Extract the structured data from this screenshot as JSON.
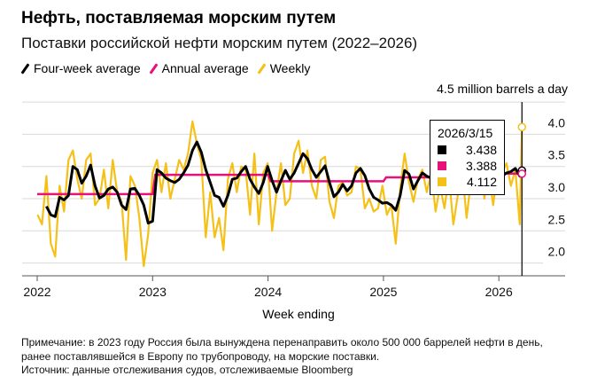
{
  "header": {
    "title": "Нефть, поставляемая морским путем",
    "subtitle": "Поставки российской нефти морским путем (2022–2026)"
  },
  "footer": {
    "note1": "Примечание: в 2023 году Россия была вынуждена перенаправить около 500 000 баррелей нефти в день,",
    "note2": "ранее поставлявшейся в Европу по трубопроводу, на морские поставки.",
    "source": "Источник: данные отслеживания судов, отслеживаемые Bloomberg"
  },
  "tooltip": {
    "date": "2026/3/15",
    "four_week": "3.438",
    "annual": "3.388",
    "weekly": "4.112"
  },
  "chart_data": {
    "type": "line",
    "title": "Нефть, поставляемая морским путем",
    "subtitle": "Поставки российской нефти морским путем (2022–2026)",
    "xlabel": "Week ending",
    "ylabel": "4.5 million barrels a day",
    "ylim": [
      2.0,
      4.5
    ],
    "yticks": [
      "2.0",
      "2.5",
      "3.0",
      "3.5",
      "4.0"
    ],
    "xticks": [
      "2022",
      "2023",
      "2024",
      "2025",
      "2026"
    ],
    "grid": true,
    "legend_position": "top-left",
    "colors": {
      "four_week": "#000000",
      "annual": "#e8107a",
      "weekly": "#f5c018"
    },
    "legend": [
      "Four-week average",
      "Annual average",
      "Weekly"
    ],
    "series": [
      {
        "name": "Weekly",
        "points": [
          [
            "2022-01-02",
            2.75
          ],
          [
            "2022-01-16",
            2.6
          ],
          [
            "2022-01-30",
            3.35
          ],
          [
            "2022-02-13",
            2.3
          ],
          [
            "2022-02-27",
            2.1
          ],
          [
            "2022-03-13",
            3.2
          ],
          [
            "2022-03-27",
            2.8
          ],
          [
            "2022-04-10",
            3.6
          ],
          [
            "2022-04-24",
            3.75
          ],
          [
            "2022-05-08",
            3.3
          ],
          [
            "2022-05-22",
            3.0
          ],
          [
            "2022-06-05",
            3.6
          ],
          [
            "2022-06-19",
            3.7
          ],
          [
            "2022-07-03",
            2.9
          ],
          [
            "2022-07-17",
            3.0
          ],
          [
            "2022-07-31",
            3.45
          ],
          [
            "2022-08-14",
            2.85
          ],
          [
            "2022-08-28",
            3.6
          ],
          [
            "2022-09-11",
            3.1
          ],
          [
            "2022-09-25",
            2.95
          ],
          [
            "2022-10-09",
            2.05
          ],
          [
            "2022-10-23",
            3.35
          ],
          [
            "2022-11-06",
            3.2
          ],
          [
            "2022-11-20",
            2.7
          ],
          [
            "2022-12-04",
            1.95
          ],
          [
            "2022-12-18",
            2.45
          ],
          [
            "2023-01-01",
            3.4
          ],
          [
            "2023-01-15",
            3.6
          ],
          [
            "2023-01-29",
            3.1
          ],
          [
            "2023-02-12",
            3.55
          ],
          [
            "2023-02-26",
            3.0
          ],
          [
            "2023-03-12",
            3.3
          ],
          [
            "2023-03-26",
            3.6
          ],
          [
            "2023-04-09",
            3.45
          ],
          [
            "2023-04-23",
            3.7
          ],
          [
            "2023-05-07",
            4.2
          ],
          [
            "2023-05-21",
            3.85
          ],
          [
            "2023-06-04",
            3.6
          ],
          [
            "2023-06-18",
            2.4
          ],
          [
            "2023-07-02",
            3.1
          ],
          [
            "2023-07-16",
            2.4
          ],
          [
            "2023-07-30",
            2.7
          ],
          [
            "2023-08-13",
            2.2
          ],
          [
            "2023-08-27",
            3.3
          ],
          [
            "2023-09-10",
            3.55
          ],
          [
            "2023-09-24",
            3.1
          ],
          [
            "2023-10-08",
            3.5
          ],
          [
            "2023-10-22",
            3.45
          ],
          [
            "2023-11-05",
            2.75
          ],
          [
            "2023-11-19",
            3.7
          ],
          [
            "2023-12-03",
            2.6
          ],
          [
            "2023-12-17",
            3.4
          ],
          [
            "2023-12-31",
            3.55
          ],
          [
            "2024-01-14",
            2.5
          ],
          [
            "2024-01-28",
            3.1
          ],
          [
            "2024-02-11",
            3.55
          ],
          [
            "2024-02-25",
            2.9
          ],
          [
            "2024-03-10",
            3.0
          ],
          [
            "2024-03-24",
            3.7
          ],
          [
            "2024-04-07",
            3.9
          ],
          [
            "2024-04-21",
            3.4
          ],
          [
            "2024-05-05",
            3.75
          ],
          [
            "2024-05-19",
            3.2
          ],
          [
            "2024-06-02",
            3.0
          ],
          [
            "2024-06-16",
            3.6
          ],
          [
            "2024-06-30",
            3.65
          ],
          [
            "2024-07-14",
            2.95
          ],
          [
            "2024-07-28",
            2.7
          ],
          [
            "2024-08-11",
            3.2
          ],
          [
            "2024-08-25",
            3.25
          ],
          [
            "2024-09-08",
            3.05
          ],
          [
            "2024-09-22",
            3.1
          ],
          [
            "2024-10-06",
            3.5
          ],
          [
            "2024-10-20",
            3.45
          ],
          [
            "2024-11-03",
            2.85
          ],
          [
            "2024-11-17",
            3.0
          ],
          [
            "2024-12-01",
            2.8
          ],
          [
            "2024-12-15",
            2.85
          ],
          [
            "2024-12-29",
            3.2
          ],
          [
            "2025-01-12",
            2.75
          ],
          [
            "2025-01-26",
            2.9
          ],
          [
            "2025-02-09",
            2.3
          ],
          [
            "2025-02-23",
            3.15
          ],
          [
            "2025-03-09",
            3.7
          ],
          [
            "2025-03-23",
            3.25
          ],
          [
            "2025-04-06",
            2.95
          ],
          [
            "2025-04-20",
            3.3
          ],
          [
            "2025-05-04",
            3.45
          ],
          [
            "2025-05-18",
            3.1
          ],
          [
            "2025-06-01",
            3.4
          ],
          [
            "2025-06-15",
            2.8
          ],
          [
            "2025-06-29",
            3.2
          ],
          [
            "2025-07-13",
            2.85
          ],
          [
            "2025-07-27",
            3.35
          ],
          [
            "2025-08-10",
            2.6
          ],
          [
            "2025-08-24",
            3.05
          ],
          [
            "2025-09-07",
            3.45
          ],
          [
            "2025-09-21",
            2.7
          ],
          [
            "2025-10-05",
            3.3
          ],
          [
            "2025-10-19",
            3.2
          ],
          [
            "2025-11-02",
            4.05
          ],
          [
            "2025-11-16",
            3.0
          ],
          [
            "2025-11-30",
            3.4
          ],
          [
            "2025-12-14",
            2.9
          ],
          [
            "2025-12-28",
            3.45
          ],
          [
            "2026-01-11",
            3.4
          ],
          [
            "2026-01-25",
            3.55
          ],
          [
            "2026-02-08",
            3.2
          ],
          [
            "2026-02-22",
            3.45
          ],
          [
            "2026-03-08",
            2.6
          ],
          [
            "2026-03-15",
            4.112
          ]
        ]
      },
      {
        "name": "Four-week average",
        "points": [
          [
            "2022-01-30",
            2.88
          ],
          [
            "2022-02-13",
            2.75
          ],
          [
            "2022-02-27",
            2.72
          ],
          [
            "2022-03-13",
            3.02
          ],
          [
            "2022-03-27",
            2.98
          ],
          [
            "2022-04-10",
            3.05
          ],
          [
            "2022-04-24",
            3.5
          ],
          [
            "2022-05-08",
            3.45
          ],
          [
            "2022-05-22",
            3.24
          ],
          [
            "2022-06-05",
            3.35
          ],
          [
            "2022-06-19",
            3.52
          ],
          [
            "2022-07-03",
            3.2
          ],
          [
            "2022-07-17",
            3.01
          ],
          [
            "2022-07-31",
            3.05
          ],
          [
            "2022-08-14",
            3.15
          ],
          [
            "2022-08-28",
            3.18
          ],
          [
            "2022-09-11",
            3.1
          ],
          [
            "2022-09-25",
            2.9
          ],
          [
            "2022-10-09",
            2.83
          ],
          [
            "2022-10-23",
            3.15
          ],
          [
            "2022-11-06",
            3.16
          ],
          [
            "2022-11-20",
            3.05
          ],
          [
            "2022-12-04",
            2.9
          ],
          [
            "2022-12-18",
            2.62
          ],
          [
            "2023-01-01",
            2.65
          ],
          [
            "2023-01-15",
            3.45
          ],
          [
            "2023-01-29",
            3.4
          ],
          [
            "2023-02-12",
            3.32
          ],
          [
            "2023-02-26",
            3.28
          ],
          [
            "2023-03-12",
            3.25
          ],
          [
            "2023-03-26",
            3.3
          ],
          [
            "2023-04-09",
            3.4
          ],
          [
            "2023-04-23",
            3.52
          ],
          [
            "2023-05-07",
            3.75
          ],
          [
            "2023-05-21",
            3.88
          ],
          [
            "2023-06-04",
            3.72
          ],
          [
            "2023-06-18",
            3.45
          ],
          [
            "2023-07-02",
            3.25
          ],
          [
            "2023-07-16",
            3.05
          ],
          [
            "2023-07-30",
            3.02
          ],
          [
            "2023-08-13",
            2.88
          ],
          [
            "2023-08-27",
            3.05
          ],
          [
            "2023-09-10",
            3.3
          ],
          [
            "2023-09-24",
            3.32
          ],
          [
            "2023-10-08",
            3.42
          ],
          [
            "2023-10-22",
            3.5
          ],
          [
            "2023-11-05",
            3.3
          ],
          [
            "2023-11-19",
            3.18
          ],
          [
            "2023-12-03",
            3.08
          ],
          [
            "2023-12-17",
            3.25
          ],
          [
            "2023-12-31",
            3.5
          ],
          [
            "2024-01-14",
            3.28
          ],
          [
            "2024-01-28",
            3.1
          ],
          [
            "2024-02-11",
            3.28
          ],
          [
            "2024-02-25",
            3.44
          ],
          [
            "2024-03-10",
            3.3
          ],
          [
            "2024-03-24",
            3.4
          ],
          [
            "2024-04-07",
            3.55
          ],
          [
            "2024-04-21",
            3.7
          ],
          [
            "2024-05-05",
            3.62
          ],
          [
            "2024-05-19",
            3.45
          ],
          [
            "2024-06-02",
            3.33
          ],
          [
            "2024-06-16",
            3.42
          ],
          [
            "2024-06-30",
            3.51
          ],
          [
            "2024-07-14",
            3.25
          ],
          [
            "2024-07-28",
            3.03
          ],
          [
            "2024-08-11",
            3.1
          ],
          [
            "2024-08-25",
            3.22
          ],
          [
            "2024-09-08",
            3.12
          ],
          [
            "2024-09-22",
            3.2
          ],
          [
            "2024-10-06",
            3.4
          ],
          [
            "2024-10-20",
            3.47
          ],
          [
            "2024-11-03",
            3.36
          ],
          [
            "2024-11-17",
            3.15
          ],
          [
            "2024-12-01",
            3.02
          ],
          [
            "2024-12-15",
            2.98
          ],
          [
            "2024-12-29",
            2.93
          ],
          [
            "2025-01-12",
            2.94
          ],
          [
            "2025-01-26",
            2.9
          ],
          [
            "2025-02-09",
            2.82
          ],
          [
            "2025-02-23",
            3.05
          ],
          [
            "2025-03-09",
            3.44
          ],
          [
            "2025-03-23",
            3.38
          ],
          [
            "2025-04-06",
            3.15
          ],
          [
            "2025-04-20",
            3.28
          ],
          [
            "2025-05-04",
            3.4
          ],
          [
            "2025-05-18",
            3.35
          ],
          [
            "2025-06-01",
            3.32
          ],
          [
            "2025-06-15",
            3.3
          ],
          [
            "2025-06-29",
            3.28
          ],
          [
            "2025-07-13",
            3.25
          ],
          [
            "2025-07-27",
            3.3
          ],
          [
            "2025-08-10",
            3.22
          ],
          [
            "2025-08-24",
            3.2
          ],
          [
            "2025-09-07",
            3.3
          ],
          [
            "2025-09-21",
            3.25
          ],
          [
            "2025-10-05",
            3.3
          ],
          [
            "2025-10-19",
            3.34
          ],
          [
            "2025-11-02",
            3.4
          ],
          [
            "2025-11-16",
            3.35
          ],
          [
            "2025-11-30",
            3.3
          ],
          [
            "2025-12-14",
            3.28
          ],
          [
            "2025-12-28",
            3.3
          ],
          [
            "2026-01-11",
            3.35
          ],
          [
            "2026-01-25",
            3.4
          ],
          [
            "2026-02-08",
            3.42
          ],
          [
            "2026-02-22",
            3.47
          ],
          [
            "2026-03-08",
            3.35
          ],
          [
            "2026-03-15",
            3.438
          ]
        ]
      },
      {
        "name": "Annual average",
        "points": [
          [
            "2022",
            3.07
          ],
          [
            "2023",
            3.37
          ],
          [
            "2024",
            3.27
          ],
          [
            "2025",
            3.33
          ],
          [
            "2026",
            3.388
          ]
        ]
      }
    ]
  }
}
